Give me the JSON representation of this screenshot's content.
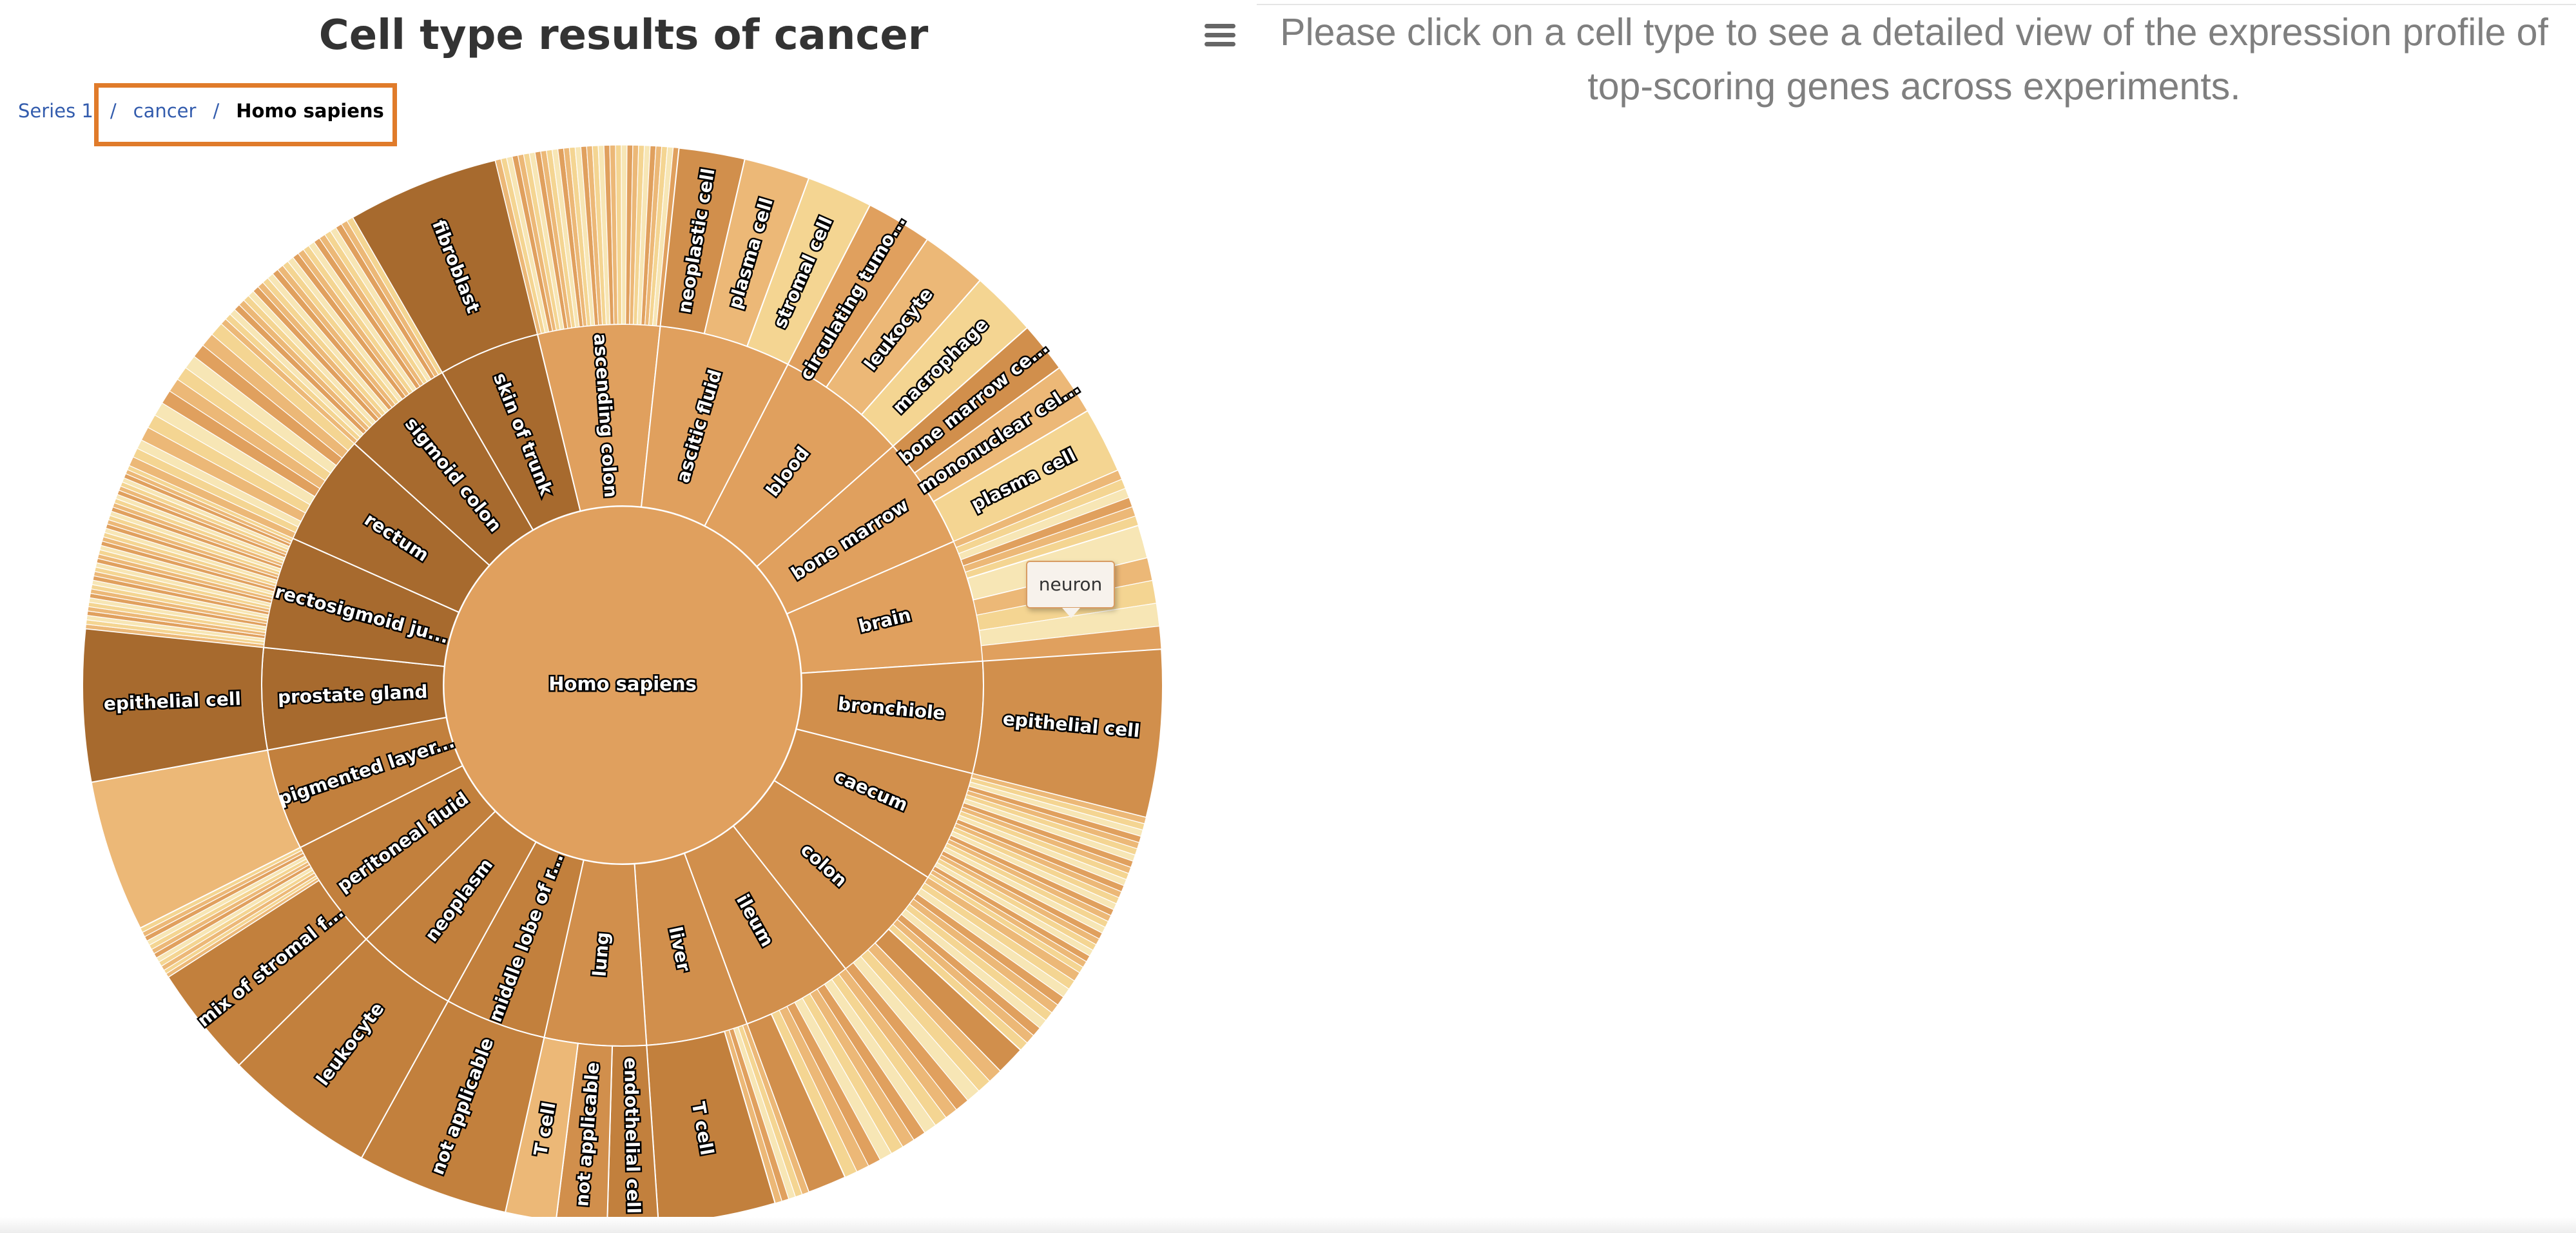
{
  "title": "Cell type results of cancer",
  "breadcrumb": [
    "Series 1",
    "cancer",
    "Homo sapiens"
  ],
  "tooltip": "neuron",
  "instructions": "Please click on a cell type to see a detailed view of the expression profile of top-scoring genes across experiments.",
  "chart_data": {
    "type": "sunburst",
    "title": "Cell type results of cancer",
    "root": "Homo sapiens",
    "colors": [
      "#a76a2e",
      "#c2803d",
      "#d18f4c",
      "#e0a05e",
      "#ecb877",
      "#f4d592",
      "#f7e6b5"
    ],
    "middle_ring": [
      {
        "label": "skin of trunk",
        "value": 5
      },
      {
        "label": "ascending colon",
        "value": 6
      },
      {
        "label": "ascitic fluid",
        "value": 6.5
      },
      {
        "label": "blood",
        "value": 6.5
      },
      {
        "label": "bone marrow",
        "value": 5.5
      },
      {
        "label": "brain",
        "value": 6
      },
      {
        "label": "bronchiole",
        "value": 5.5
      },
      {
        "label": "caecum",
        "value": 5.5
      },
      {
        "label": "colon",
        "value": 6
      },
      {
        "label": "ileum",
        "value": 5.5
      },
      {
        "label": "liver",
        "value": 5
      },
      {
        "label": "lung",
        "value": 5
      },
      {
        "label": "middle lobe of r...",
        "value": 5
      },
      {
        "label": "neoplasm",
        "value": 5
      },
      {
        "label": "peritoneal fluid",
        "value": 5.5
      },
      {
        "label": "pigmented layer...",
        "value": 5
      },
      {
        "label": "prostate gland",
        "value": 5
      },
      {
        "label": "rectosigmoid ju...",
        "value": 5.5
      },
      {
        "label": "rectum",
        "value": 5.5
      },
      {
        "label": "sigmoid colon",
        "value": 5.5
      }
    ],
    "outer_ring": [
      {
        "label": "fibroblast",
        "parent": "skin of trunk"
      },
      {
        "label": "neoplastic cell",
        "parent": "ascitic fluid"
      },
      {
        "label": "plasma cell",
        "parent": "ascitic fluid"
      },
      {
        "label": "stromal cell",
        "parent": "ascitic fluid"
      },
      {
        "label": "circulating tumo...",
        "parent": "blood"
      },
      {
        "label": "leukocyte",
        "parent": "blood"
      },
      {
        "label": "macrophage",
        "parent": "blood"
      },
      {
        "label": "bone marrow ce...",
        "parent": "bone marrow"
      },
      {
        "label": "mononuclear cel...",
        "parent": "bone marrow"
      },
      {
        "label": "plasma cell",
        "parent": "bone marrow"
      },
      {
        "label": "neuron",
        "parent": "brain"
      },
      {
        "label": "epithelial cell",
        "parent": "bronchiole"
      },
      {
        "label": "T cell",
        "parent": "liver"
      },
      {
        "label": "endothelial cell",
        "parent": "lung"
      },
      {
        "label": "not applicable",
        "parent": "lung"
      },
      {
        "label": "T cell",
        "parent": "lung"
      },
      {
        "label": "not applicable",
        "parent": "middle lobe of r..."
      },
      {
        "label": "leukocyte",
        "parent": "neoplasm"
      },
      {
        "label": "mix of stromal f...",
        "parent": "peritoneal fluid"
      },
      {
        "label": "epithelial cell",
        "parent": "prostate gland"
      }
    ]
  }
}
